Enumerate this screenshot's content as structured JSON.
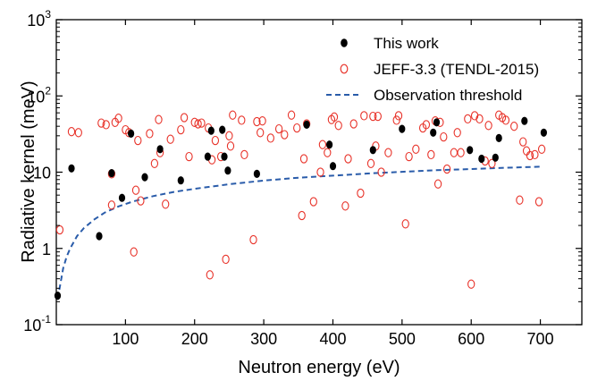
{
  "chart_data": {
    "type": "scatter",
    "title": "",
    "xlabel": "Neutron energy (eV)",
    "ylabel": "Radiative kernel (meV)",
    "xlim": [
      0,
      760
    ],
    "ylim": [
      0.1,
      1000
    ],
    "yscale": "log",
    "grid": false,
    "legend_position": "top-right",
    "x_ticks": [
      100,
      200,
      300,
      400,
      500,
      600,
      700
    ],
    "x_tick_labels": [
      "100",
      "200",
      "300",
      "400",
      "500",
      "600",
      "700"
    ],
    "y_ticks": [
      0.1,
      1,
      10,
      100,
      1000
    ],
    "y_tick_labels": [
      {
        "base": "10",
        "exp": "-1"
      },
      {
        "base": "1",
        "exp": ""
      },
      {
        "base": "10",
        "exp": ""
      },
      {
        "base": "10",
        "exp": "2"
      },
      {
        "base": "10",
        "exp": "3"
      }
    ],
    "series": [
      {
        "name": "This work",
        "marker": "filled-ellipse",
        "color": "#000000",
        "points": [
          [
            2,
            0.24
          ],
          [
            22,
            11.2
          ],
          [
            62,
            1.45
          ],
          [
            80,
            9.7
          ],
          [
            95,
            4.6
          ],
          [
            108,
            32
          ],
          [
            128,
            8.6
          ],
          [
            150,
            20
          ],
          [
            180,
            7.8
          ],
          [
            219,
            16
          ],
          [
            224,
            35
          ],
          [
            240,
            36
          ],
          [
            243,
            16
          ],
          [
            248,
            10.5
          ],
          [
            290,
            9.5
          ],
          [
            362,
            42
          ],
          [
            395,
            23
          ],
          [
            400,
            12
          ],
          [
            458,
            19.5
          ],
          [
            500,
            37
          ],
          [
            545,
            33
          ],
          [
            550,
            45
          ],
          [
            598,
            19.5
          ],
          [
            615,
            15
          ],
          [
            635,
            15.5
          ],
          [
            640,
            28
          ],
          [
            677,
            47
          ],
          [
            705,
            33
          ]
        ]
      },
      {
        "name": "JEFF-3.3 (TENDL-2015)",
        "marker": "open-ellipse",
        "color": "#e8332a",
        "points": [
          [
            5,
            1.75
          ],
          [
            22,
            34
          ],
          [
            32,
            33
          ],
          [
            65,
            44
          ],
          [
            72,
            42
          ],
          [
            80,
            9.5
          ],
          [
            80,
            3.7
          ],
          [
            85,
            45
          ],
          [
            90,
            51
          ],
          [
            100,
            36
          ],
          [
            105,
            33
          ],
          [
            112,
            0.9
          ],
          [
            115,
            5.8
          ],
          [
            118,
            26
          ],
          [
            122,
            4.2
          ],
          [
            135,
            32
          ],
          [
            142,
            13
          ],
          [
            148,
            49
          ],
          [
            150,
            18
          ],
          [
            158,
            3.8
          ],
          [
            165,
            27
          ],
          [
            180,
            36
          ],
          [
            185,
            52
          ],
          [
            192,
            16
          ],
          [
            200,
            45
          ],
          [
            205,
            43
          ],
          [
            210,
            44
          ],
          [
            220,
            38
          ],
          [
            222,
            0.45
          ],
          [
            225,
            14.5
          ],
          [
            230,
            26
          ],
          [
            238,
            16
          ],
          [
            245,
            0.72
          ],
          [
            250,
            30
          ],
          [
            252,
            22
          ],
          [
            255,
            56
          ],
          [
            268,
            48
          ],
          [
            272,
            17
          ],
          [
            285,
            1.3
          ],
          [
            290,
            46
          ],
          [
            295,
            33
          ],
          [
            298,
            47
          ],
          [
            310,
            28
          ],
          [
            322,
            37
          ],
          [
            330,
            31
          ],
          [
            340,
            56
          ],
          [
            348,
            38
          ],
          [
            355,
            2.7
          ],
          [
            358,
            15
          ],
          [
            362,
            43
          ],
          [
            372,
            4.1
          ],
          [
            382,
            10
          ],
          [
            385,
            23
          ],
          [
            392,
            18
          ],
          [
            398,
            49
          ],
          [
            402,
            53
          ],
          [
            408,
            41
          ],
          [
            418,
            3.6
          ],
          [
            422,
            15
          ],
          [
            430,
            43
          ],
          [
            440,
            5.3
          ],
          [
            445,
            55
          ],
          [
            455,
            13
          ],
          [
            458,
            54
          ],
          [
            462,
            22
          ],
          [
            465,
            54
          ],
          [
            470,
            10
          ],
          [
            480,
            18
          ],
          [
            492,
            48
          ],
          [
            495,
            55
          ],
          [
            505,
            2.1
          ],
          [
            510,
            16
          ],
          [
            520,
            20
          ],
          [
            530,
            38
          ],
          [
            535,
            42
          ],
          [
            542,
            17
          ],
          [
            548,
            47
          ],
          [
            552,
            7
          ],
          [
            555,
            45
          ],
          [
            560,
            29
          ],
          [
            565,
            11
          ],
          [
            575,
            18
          ],
          [
            580,
            33
          ],
          [
            585,
            18
          ],
          [
            595,
            50
          ],
          [
            600,
            0.34
          ],
          [
            605,
            55
          ],
          [
            612,
            50
          ],
          [
            620,
            14
          ],
          [
            625,
            41
          ],
          [
            630,
            13
          ],
          [
            640,
            56
          ],
          [
            645,
            52
          ],
          [
            650,
            48
          ],
          [
            662,
            40
          ],
          [
            670,
            4.3
          ],
          [
            675,
            25
          ],
          [
            680,
            19
          ],
          [
            685,
            16.5
          ],
          [
            692,
            17
          ],
          [
            698,
            4.1
          ],
          [
            702,
            20
          ]
        ]
      }
    ],
    "threshold": {
      "name": "Observation threshold",
      "style": "dashed",
      "color": "#2a5caa",
      "x": [
        2,
        5,
        10,
        15,
        20,
        30,
        40,
        55,
        70,
        90,
        110,
        140,
        170,
        200,
        250,
        300,
        350,
        400,
        450,
        500,
        550,
        600,
        650,
        700
      ],
      "y": [
        0.22,
        0.31,
        0.55,
        0.78,
        1.0,
        1.45,
        1.85,
        2.4,
        2.95,
        3.55,
        4.1,
        4.85,
        5.5,
        6.05,
        6.95,
        7.75,
        8.45,
        9.0,
        9.6,
        10.1,
        10.6,
        11.0,
        11.4,
        11.8
      ]
    }
  }
}
